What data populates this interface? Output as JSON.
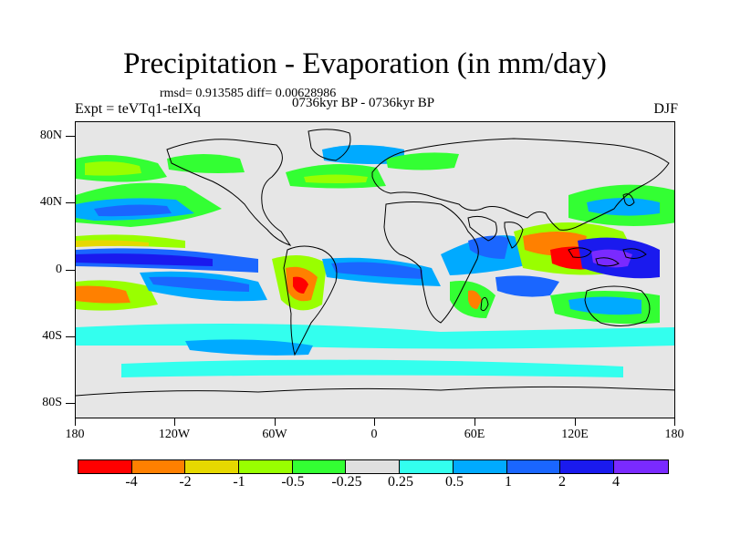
{
  "title": "Precipitation - Evaporation (in mm/day)",
  "stats": "rmsd= 0.913585 diff= 0.00628986",
  "period": "0736kyr BP - 0736kyr BP",
  "expt": "Expt = teVTq1-teIXq",
  "season": "DJF",
  "lat_ticks": [
    "80N",
    "40N",
    "0",
    "40S",
    "80S"
  ],
  "lon_ticks": [
    "180",
    "120W",
    "60W",
    "0",
    "60E",
    "120E",
    "180"
  ],
  "colorbar": {
    "colors": [
      "#ff0000",
      "#ff8000",
      "#e6d800",
      "#99ff00",
      "#33ff33",
      "#e0e0e0",
      "#33ffee",
      "#00aaff",
      "#1a66ff",
      "#1a1aee",
      "#7a2aff"
    ],
    "labels": [
      "-4",
      "-2",
      "-1",
      "-0.5",
      "-0.25",
      "0.25",
      "0.5",
      "1",
      "2",
      "4"
    ]
  },
  "map": {
    "background": "#e6e6e6",
    "coastline_color": "#000000"
  }
}
